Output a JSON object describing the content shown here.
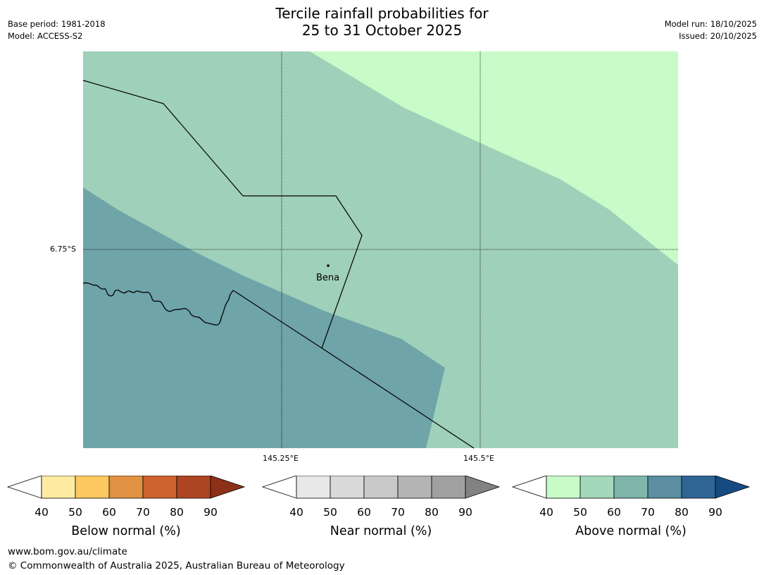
{
  "header": {
    "title_line1": "Tercile rainfall probabilities for",
    "title_line2": "25 to 31 October 2025",
    "base_period": "Base period: 1981-2018",
    "model": "Model: ACCESS-S2",
    "model_run": "Model run: 18/10/2025",
    "issued": "Issued: 20/10/2025"
  },
  "map": {
    "place_label": "Bena",
    "lat_label": "6.75°S",
    "lon_labels": [
      "145.25°E",
      "145.5°E"
    ],
    "colors": {
      "above_40_50": "#c8fbc8",
      "above_50_60": "#9fd0b9",
      "above_60_70": "#6fa4a8",
      "boundary": "#000000",
      "gridline": "#000000"
    }
  },
  "colorbars": [
    {
      "label": "Below normal (%)",
      "ticks": [
        "40",
        "50",
        "60",
        "70",
        "80",
        "90"
      ],
      "colors": [
        "#ffffff",
        "#fdeba1",
        "#fdc960",
        "#e09142",
        "#cd6330",
        "#ad4523",
        "#8c3018"
      ]
    },
    {
      "label": "Near normal (%)",
      "ticks": [
        "40",
        "50",
        "60",
        "70",
        "80",
        "90"
      ],
      "colors": [
        "#ffffff",
        "#e8e8e8",
        "#d9d9d9",
        "#c9c9c9",
        "#b4b4b4",
        "#a0a0a0",
        "#828282"
      ]
    },
    {
      "label": "Above normal (%)",
      "ticks": [
        "40",
        "50",
        "60",
        "70",
        "80",
        "90"
      ],
      "colors": [
        "#ffffff",
        "#c8fbc8",
        "#a3d8ba",
        "#7fb5ab",
        "#5a8ea0",
        "#2f6595",
        "#164a82"
      ]
    }
  ],
  "footer": {
    "url": "www.bom.gov.au/climate",
    "copyright": "© Commonwealth of Australia 2025, Australian Bureau of Meteorology"
  }
}
